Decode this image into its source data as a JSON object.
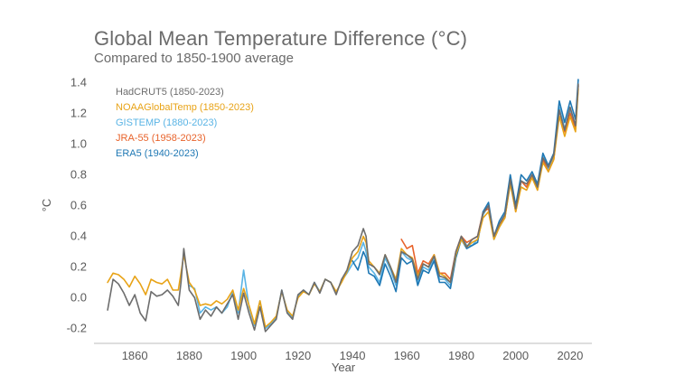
{
  "chart_data": {
    "type": "line",
    "title": "Global Mean Temperature Difference (°C)",
    "subtitle": "Compared to 1850-1900 average",
    "xlabel": "Year",
    "ylabel": "°C",
    "xlim": [
      1845,
      2028
    ],
    "ylim": [
      -0.25,
      1.42
    ],
    "x_ticks": [
      1860,
      1880,
      1900,
      1920,
      1940,
      1960,
      1980,
      2000,
      2020
    ],
    "y_ticks": [
      -0.2,
      0.0,
      0.2,
      0.4,
      0.6,
      0.8,
      1.0,
      1.2,
      1.4
    ],
    "y_tick_labels": [
      "-0.2",
      "0.0",
      "0.2",
      "0.4",
      "0.6",
      "0.8",
      "1.0",
      "1.2",
      "1.4"
    ],
    "grid": false,
    "legend_position": "top-left",
    "series": [
      {
        "name": "HadCRUT5 (1850-2023)",
        "color": "#6d6d6d",
        "x": [
          1850,
          1852,
          1854,
          1856,
          1858,
          1860,
          1862,
          1864,
          1866,
          1868,
          1870,
          1872,
          1874,
          1876,
          1877,
          1878,
          1880,
          1882,
          1884,
          1886,
          1888,
          1890,
          1892,
          1894,
          1896,
          1898,
          1900,
          1902,
          1904,
          1906,
          1908,
          1910,
          1912,
          1914,
          1916,
          1918,
          1920,
          1922,
          1924,
          1926,
          1928,
          1930,
          1932,
          1934,
          1936,
          1938,
          1940,
          1942,
          1944,
          1945,
          1946,
          1948,
          1950,
          1952,
          1954,
          1956,
          1958,
          1960,
          1962,
          1964,
          1966,
          1968,
          1970,
          1972,
          1974,
          1976,
          1978,
          1980,
          1982,
          1984,
          1986,
          1988,
          1990,
          1992,
          1994,
          1996,
          1998,
          2000,
          2002,
          2004,
          2006,
          2008,
          2010,
          2012,
          2014,
          2016,
          2018,
          2020,
          2022,
          2023
        ],
        "values": [
          -0.08,
          0.12,
          0.09,
          0.03,
          -0.05,
          0.02,
          -0.1,
          -0.15,
          0.04,
          0.01,
          0.02,
          0.05,
          0.01,
          -0.05,
          0.1,
          0.32,
          0.05,
          0.0,
          -0.14,
          -0.08,
          -0.12,
          -0.06,
          -0.1,
          -0.04,
          0.02,
          -0.14,
          0.03,
          -0.1,
          -0.21,
          -0.06,
          -0.22,
          -0.18,
          -0.14,
          0.05,
          -0.1,
          -0.14,
          0.02,
          0.05,
          0.02,
          0.1,
          0.03,
          0.12,
          0.1,
          0.02,
          0.12,
          0.18,
          0.3,
          0.34,
          0.45,
          0.4,
          0.22,
          0.2,
          0.15,
          0.28,
          0.2,
          0.1,
          0.3,
          0.28,
          0.25,
          0.12,
          0.22,
          0.2,
          0.27,
          0.14,
          0.13,
          0.1,
          0.3,
          0.4,
          0.33,
          0.38,
          0.4,
          0.55,
          0.6,
          0.4,
          0.48,
          0.54,
          0.77,
          0.58,
          0.76,
          0.74,
          0.8,
          0.72,
          0.91,
          0.85,
          0.93,
          1.22,
          1.09,
          1.24,
          1.12,
          1.39
        ]
      },
      {
        "name": "NOAAGlobalTemp (1850-2023)",
        "color": "#e8a317",
        "x": [
          1850,
          1852,
          1854,
          1856,
          1858,
          1860,
          1862,
          1864,
          1866,
          1868,
          1870,
          1872,
          1874,
          1876,
          1877,
          1878,
          1880,
          1882,
          1884,
          1886,
          1888,
          1890,
          1892,
          1894,
          1896,
          1898,
          1900,
          1902,
          1904,
          1906,
          1908,
          1910,
          1912,
          1914,
          1916,
          1918,
          1920,
          1922,
          1924,
          1926,
          1928,
          1930,
          1932,
          1934,
          1936,
          1938,
          1940,
          1942,
          1944,
          1945,
          1946,
          1948,
          1950,
          1952,
          1954,
          1956,
          1958,
          1960,
          1962,
          1964,
          1966,
          1968,
          1970,
          1972,
          1974,
          1976,
          1978,
          1980,
          1982,
          1984,
          1986,
          1988,
          1990,
          1992,
          1994,
          1996,
          1998,
          2000,
          2002,
          2004,
          2006,
          2008,
          2010,
          2012,
          2014,
          2016,
          2018,
          2020,
          2022,
          2023
        ],
        "values": [
          0.1,
          0.16,
          0.15,
          0.12,
          0.07,
          0.14,
          0.09,
          0.02,
          0.12,
          0.1,
          0.09,
          0.12,
          0.05,
          0.05,
          0.16,
          0.28,
          0.1,
          0.05,
          -0.05,
          -0.04,
          -0.05,
          -0.02,
          -0.04,
          -0.01,
          0.05,
          -0.08,
          0.06,
          -0.05,
          -0.17,
          -0.02,
          -0.19,
          -0.16,
          -0.12,
          0.04,
          -0.08,
          -0.12,
          0.0,
          0.04,
          0.02,
          0.09,
          0.04,
          0.12,
          0.1,
          0.04,
          0.1,
          0.17,
          0.26,
          0.3,
          0.4,
          0.36,
          0.24,
          0.2,
          0.16,
          0.28,
          0.2,
          0.12,
          0.32,
          0.28,
          0.26,
          0.14,
          0.22,
          0.2,
          0.28,
          0.16,
          0.14,
          0.1,
          0.28,
          0.38,
          0.33,
          0.36,
          0.38,
          0.52,
          0.56,
          0.38,
          0.46,
          0.52,
          0.74,
          0.56,
          0.72,
          0.7,
          0.78,
          0.7,
          0.88,
          0.82,
          0.9,
          1.18,
          1.05,
          1.18,
          1.08,
          1.36
        ]
      },
      {
        "name": "GISTEMP (1880-2023)",
        "color": "#5ab4e5",
        "x": [
          1880,
          1882,
          1884,
          1886,
          1888,
          1890,
          1892,
          1894,
          1896,
          1898,
          1900,
          1902,
          1904,
          1906,
          1908,
          1910,
          1912,
          1914,
          1916,
          1918,
          1920,
          1922,
          1924,
          1926,
          1928,
          1930,
          1932,
          1934,
          1936,
          1938,
          1940,
          1942,
          1944,
          1945,
          1946,
          1948,
          1950,
          1952,
          1954,
          1956,
          1958,
          1960,
          1962,
          1964,
          1966,
          1968,
          1970,
          1972,
          1974,
          1976,
          1978,
          1980,
          1982,
          1984,
          1986,
          1988,
          1990,
          1992,
          1994,
          1996,
          1998,
          2000,
          2002,
          2004,
          2006,
          2008,
          2010,
          2012,
          2014,
          2016,
          2018,
          2020,
          2022,
          2023
        ],
        "values": [
          0.08,
          0.06,
          -0.1,
          -0.06,
          -0.08,
          -0.06,
          -0.1,
          -0.06,
          0.04,
          -0.1,
          0.18,
          -0.06,
          -0.18,
          -0.02,
          -0.2,
          -0.17,
          -0.13,
          0.05,
          -0.09,
          -0.13,
          0.01,
          0.05,
          0.02,
          0.1,
          0.04,
          0.12,
          0.1,
          0.03,
          0.11,
          0.16,
          0.22,
          0.26,
          0.36,
          0.3,
          0.2,
          0.16,
          0.1,
          0.26,
          0.18,
          0.08,
          0.3,
          0.26,
          0.24,
          0.1,
          0.2,
          0.18,
          0.25,
          0.12,
          0.12,
          0.08,
          0.28,
          0.4,
          0.34,
          0.34,
          0.38,
          0.54,
          0.6,
          0.38,
          0.46,
          0.52,
          0.76,
          0.58,
          0.76,
          0.72,
          0.8,
          0.72,
          0.92,
          0.84,
          0.92,
          1.24,
          1.1,
          1.22,
          1.12,
          1.38
        ]
      },
      {
        "name": "JRA-55 (1958-2023)",
        "color": "#e8632b",
        "x": [
          1958,
          1960,
          1962,
          1964,
          1966,
          1968,
          1970,
          1972,
          1974,
          1976,
          1978,
          1980,
          1982,
          1984,
          1986,
          1988,
          1990,
          1992,
          1994,
          1996,
          1998,
          2000,
          2002,
          2004,
          2006,
          2008,
          2010,
          2012,
          2014,
          2016,
          2018,
          2020,
          2022,
          2023
        ],
        "values": [
          0.38,
          0.32,
          0.34,
          0.16,
          0.24,
          0.22,
          0.28,
          0.16,
          0.16,
          0.12,
          0.3,
          0.4,
          0.36,
          0.38,
          0.4,
          0.56,
          0.58,
          0.4,
          0.48,
          0.52,
          0.76,
          0.56,
          0.76,
          0.72,
          0.8,
          0.7,
          0.9,
          0.82,
          0.9,
          1.22,
          1.08,
          1.2,
          1.1,
          1.38
        ]
      },
      {
        "name": "ERA5 (1940-2023)",
        "color": "#1f78b4",
        "x": [
          1940,
          1942,
          1944,
          1945,
          1946,
          1948,
          1950,
          1952,
          1954,
          1956,
          1958,
          1960,
          1962,
          1964,
          1966,
          1968,
          1970,
          1972,
          1974,
          1976,
          1978,
          1980,
          1982,
          1984,
          1986,
          1988,
          1990,
          1992,
          1994,
          1996,
          1998,
          2000,
          2002,
          2004,
          2006,
          2008,
          2010,
          2012,
          2014,
          2016,
          2018,
          2020,
          2022,
          2023
        ],
        "values": [
          0.24,
          0.18,
          0.3,
          0.26,
          0.16,
          0.14,
          0.08,
          0.22,
          0.14,
          0.04,
          0.26,
          0.22,
          0.24,
          0.08,
          0.18,
          0.16,
          0.24,
          0.1,
          0.1,
          0.06,
          0.26,
          0.38,
          0.32,
          0.34,
          0.36,
          0.56,
          0.62,
          0.4,
          0.5,
          0.56,
          0.8,
          0.6,
          0.8,
          0.76,
          0.82,
          0.74,
          0.94,
          0.86,
          0.94,
          1.28,
          1.14,
          1.28,
          1.16,
          1.42
        ]
      }
    ]
  }
}
